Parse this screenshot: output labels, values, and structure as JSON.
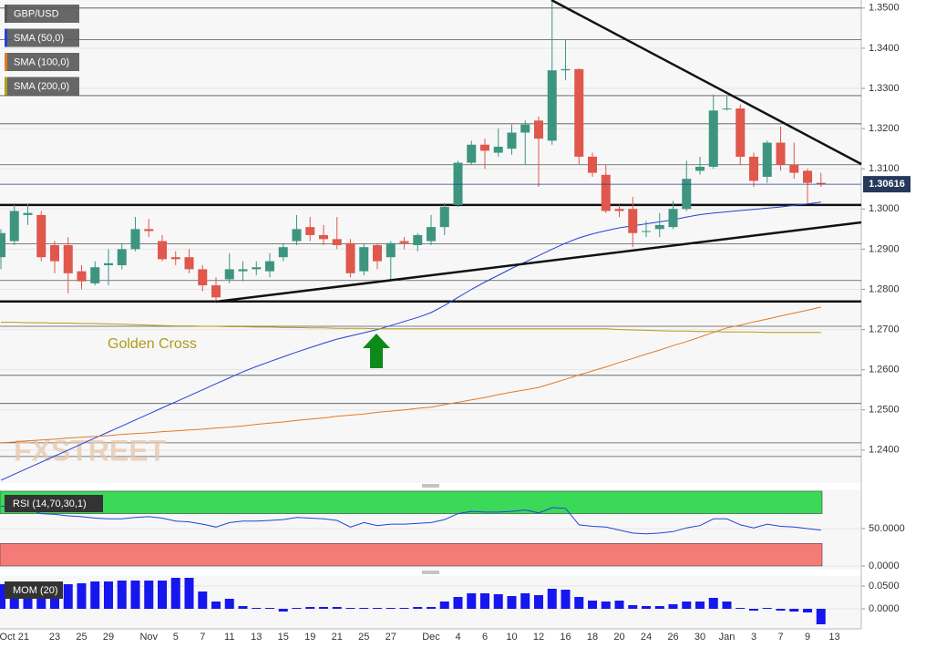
{
  "chart_data": [
    {
      "type": "candlestick",
      "name": "GBP/USD",
      "categories": [
        null,
        "Oct 21",
        null,
        null,
        "23",
        null,
        "25",
        null,
        "29",
        null,
        null,
        "Nov",
        null,
        "5",
        null,
        "7",
        null,
        "11",
        null,
        "13",
        null,
        "15",
        null,
        "19",
        null,
        "21",
        null,
        "25",
        null,
        "27",
        null,
        null,
        "Dec",
        null,
        "4",
        null,
        "6",
        null,
        "10",
        null,
        "12",
        null,
        "16",
        null,
        "18",
        null,
        "20",
        null,
        "24",
        null,
        "26",
        null,
        "30",
        null,
        "Jan",
        null,
        "3",
        null,
        "7",
        null,
        "9",
        null,
        "13"
      ],
      "open": [
        1.288,
        1.292,
        1.2985,
        1.2985,
        1.291,
        1.291,
        1.2845,
        1.2815,
        1.286,
        1.286,
        1.29,
        1.295,
        1.292,
        1.288,
        1.288,
        1.285,
        1.281,
        1.2825,
        1.2845,
        1.285,
        1.2845,
        1.288,
        1.292,
        1.2955,
        1.2935,
        1.2925,
        1.2915,
        1.2845,
        1.291,
        1.288,
        1.292,
        1.291,
        1.292,
        1.2955,
        1.301,
        1.3115,
        1.316,
        1.314,
        1.315,
        1.319,
        1.322,
        1.317,
        1.3345,
        1.3348,
        1.313,
        1.3085,
        1.3,
        1.3,
        1.2945,
        1.295,
        1.2955,
        1.3,
        1.3095,
        1.3105,
        1.3248,
        1.325,
        1.313,
        1.308,
        1.3165,
        1.311,
        1.3095,
        1.3065,
        null
      ],
      "high": [
        1.295,
        1.301,
        1.3012,
        1.2995,
        1.292,
        1.293,
        1.286,
        1.287,
        1.29,
        1.2915,
        1.298,
        1.2975,
        1.2935,
        1.2895,
        1.29,
        1.286,
        1.283,
        1.289,
        1.287,
        1.287,
        1.289,
        1.2915,
        1.2985,
        1.298,
        1.296,
        1.298,
        1.2925,
        1.2915,
        1.2915,
        1.292,
        1.293,
        1.294,
        1.2985,
        1.3015,
        1.312,
        1.317,
        1.3175,
        1.32,
        1.321,
        1.322,
        1.323,
        1.3515,
        1.342,
        1.335,
        1.314,
        1.311,
        1.301,
        1.303,
        1.297,
        1.299,
        1.302,
        1.312,
        1.313,
        1.3285,
        1.328,
        1.326,
        1.314,
        1.317,
        1.3205,
        1.3165,
        1.31,
        1.309,
        null
      ],
      "low": [
        1.285,
        1.291,
        1.296,
        1.287,
        1.284,
        1.279,
        1.28,
        1.281,
        1.281,
        1.285,
        1.2895,
        1.293,
        1.287,
        1.286,
        1.284,
        1.2795,
        1.277,
        1.2815,
        1.282,
        1.2835,
        1.283,
        1.287,
        1.291,
        1.292,
        1.291,
        1.29,
        1.283,
        1.2835,
        1.285,
        1.2825,
        1.29,
        1.2895,
        1.291,
        1.2935,
        1.3005,
        1.311,
        1.31,
        1.313,
        1.3135,
        1.311,
        1.3055,
        1.316,
        1.332,
        1.311,
        1.308,
        1.299,
        1.298,
        1.2905,
        1.293,
        1.293,
        1.295,
        1.2995,
        1.3085,
        1.31,
        1.3245,
        1.311,
        1.3055,
        1.3065,
        1.3095,
        1.3075,
        1.3015,
        1.3055,
        null
      ],
      "close": [
        1.294,
        1.2995,
        1.299,
        1.288,
        1.287,
        1.284,
        1.282,
        1.2855,
        1.2865,
        1.29,
        1.295,
        1.2945,
        1.2875,
        1.2875,
        1.285,
        1.281,
        1.278,
        1.285,
        1.285,
        1.2855,
        1.287,
        1.2905,
        1.295,
        1.2935,
        1.2925,
        1.291,
        1.284,
        1.2905,
        1.287,
        1.2915,
        1.2915,
        1.2935,
        1.2955,
        1.3005,
        1.3115,
        1.316,
        1.3145,
        1.3155,
        1.319,
        1.321,
        1.3175,
        1.3345,
        1.3348,
        1.313,
        1.309,
        1.2995,
        1.2995,
        1.294,
        1.2945,
        1.296,
        1.3,
        1.3075,
        1.3105,
        1.3245,
        1.325,
        1.313,
        1.307,
        1.3165,
        1.311,
        1.309,
        1.3065,
        1.30616,
        null
      ],
      "up_color": "#3d9580",
      "down_color": "#e0574b",
      "series": [
        {
          "name": "SMA (50,0)",
          "color": "#2540d8",
          "values": [
            1.2325,
            1.234,
            1.2355,
            1.237,
            1.2385,
            1.24,
            1.2415,
            1.243,
            1.2445,
            1.246,
            1.2475,
            1.249,
            1.2505,
            1.252,
            1.2535,
            1.255,
            1.2565,
            1.258,
            1.2595,
            1.2608,
            1.262,
            1.2632,
            1.2644,
            1.2655,
            1.2666,
            1.2676,
            1.2684,
            1.2692,
            1.27,
            1.271,
            1.272,
            1.273,
            1.2742,
            1.276,
            1.278,
            1.28,
            1.2818,
            1.2835,
            1.2852,
            1.2868,
            1.2884,
            1.29,
            1.2915,
            1.2928,
            1.2938,
            1.2946,
            1.2953,
            1.2958,
            1.2963,
            1.2968,
            1.2973,
            1.298,
            1.2986,
            1.299,
            1.2993,
            1.2996,
            1.2999,
            1.3002,
            1.3005,
            1.3009,
            1.3013,
            1.3017,
            null
          ]
        },
        {
          "name": "SMA (100,0)",
          "color": "#e27a26",
          "values": [
            1.2418,
            1.242,
            1.2423,
            1.2425,
            1.2427,
            1.243,
            1.2432,
            1.2434,
            1.2436,
            1.2439,
            1.2441,
            1.2443,
            1.2446,
            1.2448,
            1.245,
            1.2452,
            1.2455,
            1.2457,
            1.246,
            1.2464,
            1.2467,
            1.247,
            1.2474,
            1.2477,
            1.248,
            1.2484,
            1.2487,
            1.249,
            1.2494,
            1.2497,
            1.25,
            1.2504,
            1.2507,
            1.2513,
            1.2519,
            1.2525,
            1.2531,
            1.2538,
            1.2544,
            1.255,
            1.2556,
            1.2566,
            1.2576,
            1.2587,
            1.2597,
            1.2607,
            1.2618,
            1.2628,
            1.2639,
            1.2649,
            1.266,
            1.267,
            1.2681,
            1.2693,
            1.2704,
            1.2711,
            1.2719,
            1.2726,
            1.2734,
            1.2741,
            1.2748,
            1.2756,
            null
          ]
        },
        {
          "name": "SMA (200,0)",
          "color": "#b49d16",
          "values": [
            1.2718,
            1.2718,
            1.2717,
            1.2717,
            1.2716,
            1.2716,
            1.2715,
            1.2715,
            1.2714,
            1.2713,
            1.2712,
            1.2711,
            1.271,
            1.2709,
            1.2709,
            1.2708,
            1.2708,
            1.2707,
            1.2707,
            1.2706,
            1.2706,
            1.2705,
            1.2705,
            1.2704,
            1.2704,
            1.2703,
            1.2703,
            1.2703,
            1.2702,
            1.2702,
            1.2702,
            1.2702,
            1.2702,
            1.2702,
            1.2702,
            1.2702,
            1.2702,
            1.2702,
            1.2702,
            1.2702,
            1.2702,
            1.2702,
            1.2702,
            1.2702,
            1.2702,
            1.2702,
            1.27,
            1.2699,
            1.2698,
            1.2697,
            1.2696,
            1.2696,
            1.2695,
            1.2695,
            1.2694,
            1.2694,
            1.2694,
            1.2693,
            1.2693,
            1.2693,
            1.2693,
            1.2693,
            null
          ]
        }
      ],
      "ylim": [
        1.2318,
        1.352
      ],
      "yticks": [
        {
          "value": 1.35,
          "label": "1.3500"
        },
        {
          "value": 1.34,
          "label": "1.3400"
        },
        {
          "value": 1.33,
          "label": "1.3300"
        },
        {
          "value": 1.32,
          "label": "1.3200"
        },
        {
          "value": 1.31,
          "label": "1.3100"
        },
        {
          "value": 1.3,
          "label": "1.3000"
        },
        {
          "value": 1.29,
          "label": "1.2900"
        },
        {
          "value": 1.28,
          "label": "1.2800"
        },
        {
          "value": 1.27,
          "label": "1.2700"
        },
        {
          "value": 1.26,
          "label": "1.2600"
        },
        {
          "value": 1.25,
          "label": "1.2500"
        },
        {
          "value": 1.24,
          "label": "1.2400"
        }
      ],
      "levels": [
        1.35,
        1.3421,
        1.3282,
        1.3212,
        1.311,
        1.2913,
        1.2822,
        1.2708,
        1.2586,
        1.2516,
        1.2418,
        1.2384
      ],
      "key_levels": [
        1.301,
        1.277
      ],
      "last_price": 1.30616,
      "annotation": "Golden Cross",
      "watermark": "FXSTREET"
    },
    {
      "type": "line",
      "title": "RSI (14,70,30,1)",
      "color": "#2540d8",
      "values": [
        80,
        79,
        76,
        70,
        69,
        67,
        66,
        64,
        63,
        63,
        65,
        66,
        64,
        60,
        59,
        56,
        52,
        58,
        60,
        60,
        61,
        62,
        65,
        64,
        63,
        61,
        52,
        58,
        54,
        56,
        56,
        57,
        58,
        62,
        70,
        73,
        72,
        72,
        73,
        75,
        71,
        78,
        77,
        55,
        53,
        52,
        48,
        44,
        43,
        44,
        46,
        51,
        54,
        63,
        63,
        55,
        51,
        56,
        53,
        52,
        50,
        48,
        null
      ],
      "bands": [
        {
          "range": [
            70,
            100
          ],
          "color": "#3ad957"
        },
        {
          "range": [
            0,
            30
          ],
          "color": "#f47b78"
        }
      ],
      "ylim": [
        -4.9,
        102.4
      ],
      "yticks": [
        {
          "value": 50,
          "label": "50.0000"
        },
        {
          "value": 0,
          "label": "0.0000"
        }
      ]
    },
    {
      "type": "bar",
      "title": "MOM (20)",
      "color": "#1616ee",
      "values": [
        0.054,
        0.056,
        0.056,
        0.06,
        0.054,
        0.054,
        0.056,
        0.06,
        0.06,
        0.062,
        0.062,
        0.062,
        0.062,
        0.068,
        0.068,
        0.038,
        0.016,
        0.022,
        0.006,
        0.002,
        0.002,
        -0.006,
        0.002,
        0.004,
        0.004,
        0.004,
        0.002,
        0.002,
        0.002,
        0.002,
        0.002,
        0.004,
        0.004,
        0.016,
        0.026,
        0.034,
        0.034,
        0.032,
        0.028,
        0.034,
        0.03,
        0.044,
        0.042,
        0.026,
        0.018,
        0.016,
        0.018,
        0.008,
        0.006,
        0.006,
        0.01,
        0.016,
        0.016,
        0.024,
        0.016,
        0.002,
        -0.004,
        0.002,
        -0.004,
        -0.006,
        -0.008,
        -0.034,
        null
      ],
      "ylim": [
        -0.044,
        0.072
      ],
      "yticks": [
        {
          "value": 0.05,
          "label": "0.0500"
        },
        {
          "value": 0,
          "label": "0.0000"
        }
      ]
    }
  ]
}
